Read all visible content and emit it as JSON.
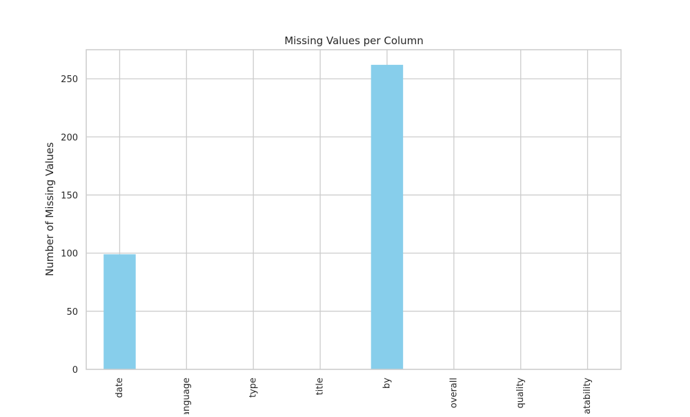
{
  "chart_data": {
    "type": "bar",
    "title": "Missing Values per Column",
    "xlabel": "",
    "ylabel": "Number of Missing Values",
    "categories": [
      "date",
      "language",
      "type",
      "title",
      "by",
      "overall",
      "quality",
      "repeatability"
    ],
    "values": [
      99,
      0,
      0,
      0,
      262,
      0,
      0,
      0
    ],
    "ylim": [
      0,
      275
    ],
    "yticks": [
      0,
      50,
      100,
      150,
      200,
      250
    ],
    "grid": true,
    "legend": "none",
    "bar_color": "#87CEEB",
    "grid_color": "#cccccc",
    "spine_color": "#cccccc",
    "x_tick_rotation": 90
  }
}
